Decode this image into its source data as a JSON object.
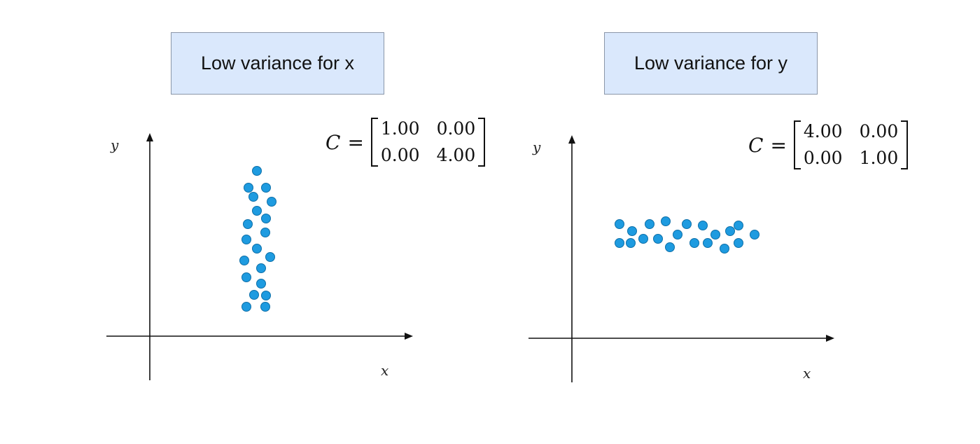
{
  "panels": [
    {
      "title": "Low variance for x",
      "matrix_lhs": "C",
      "matrix_eq": "=",
      "matrix": [
        [
          "1.00",
          "0.00"
        ],
        [
          "0.00",
          "4.00"
        ]
      ],
      "x_label": "x",
      "y_label": "y"
    },
    {
      "title": "Low variance for y",
      "matrix_lhs": "C",
      "matrix_eq": "=",
      "matrix": [
        [
          "4.00",
          "0.00"
        ],
        [
          "0.00",
          "1.00"
        ]
      ],
      "x_label": "x",
      "y_label": "y"
    }
  ],
  "colors": {
    "point": "#1e9be0",
    "point_stroke": "#0d6fa8",
    "title_fill": "#dae8fc",
    "axis": "#111111"
  }
}
